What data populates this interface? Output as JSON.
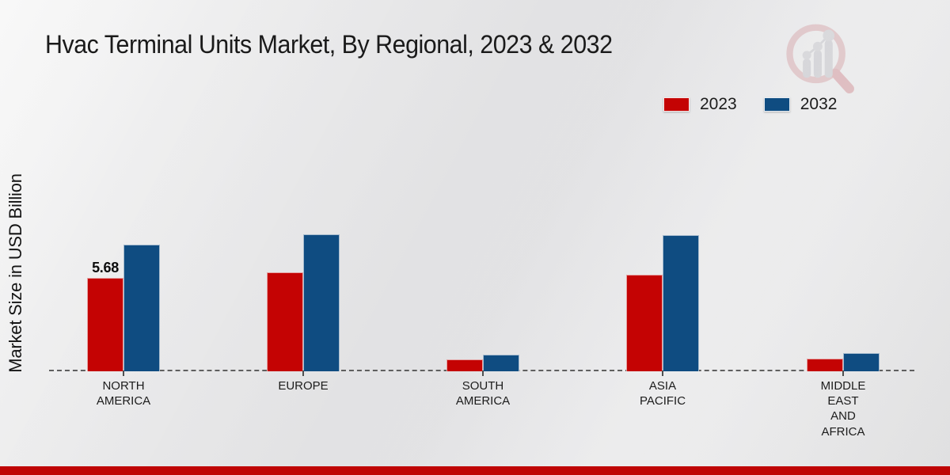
{
  "chart_data": {
    "type": "bar",
    "title": "Hvac Terminal Units Market, By Regional, 2023 & 2032",
    "ylabel": "Market Size in USD Billion",
    "xlabel": "",
    "categories": [
      "NORTH\nAMERICA",
      "EUROPE",
      "SOUTH\nAMERICA",
      "ASIA\nPACIFIC",
      "MIDDLE\nEAST\nAND\nAFRICA"
    ],
    "series": [
      {
        "name": "2023",
        "color": "#c40303",
        "values": [
          5.68,
          6.02,
          0.72,
          5.88,
          0.78
        ],
        "labels": [
          "5.68",
          "",
          "",
          "",
          ""
        ]
      },
      {
        "name": "2032",
        "color": "#0f4c81",
        "values": [
          7.68,
          8.33,
          1.01,
          8.28,
          1.11
        ],
        "labels": [
          "",
          "",
          "",
          "",
          ""
        ]
      }
    ],
    "ylim": [
      0,
      10
    ],
    "grid": false,
    "legend_position": "top-right",
    "baseline_style": "dashed",
    "accent_colors": {
      "footer_stripe": "#bf0404",
      "baseline": "#5f5f5f",
      "background": "#ebebec"
    }
  }
}
